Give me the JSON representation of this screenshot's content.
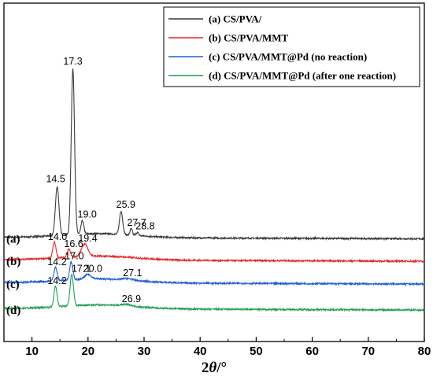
{
  "chart_data": {
    "type": "line",
    "title": "",
    "xlabel": "2θ/°",
    "xlabel_parts": [
      "2",
      "θ",
      "/°"
    ],
    "ylabel": "",
    "xlim": [
      5,
      80
    ],
    "xticks": [
      10,
      20,
      30,
      40,
      50,
      60,
      70,
      80
    ],
    "yticks_shown": false,
    "grid": false,
    "legend_position": "top-right",
    "series": [
      {
        "id": "a",
        "name": "(a) CS/PVA/",
        "label": "(a)",
        "color": "#3a3a3a",
        "baseline": 0.285,
        "peaks": [
          {
            "x": 14.5,
            "h": 0.62,
            "w": 0.45,
            "label": "14.5"
          },
          {
            "x": 17.3,
            "h": 2.1,
            "w": 0.42,
            "label": "17.3"
          },
          {
            "x": 19.0,
            "h": 0.17,
            "w": 0.35,
            "label": "19.0"
          },
          {
            "x": 25.9,
            "h": 0.3,
            "w": 0.4,
            "label": "25.9"
          },
          {
            "x": 27.7,
            "h": 0.08,
            "w": 0.3,
            "label": "27.7"
          },
          {
            "x": 28.8,
            "h": 0.04,
            "w": 0.3,
            "label": "28.8"
          }
        ]
      },
      {
        "id": "b",
        "name": "(b) CS/PVA/MMT",
        "label": "(b)",
        "color": "#e8282b",
        "baseline": 0.0,
        "peaks": [
          {
            "x": 14.0,
            "h": 0.2,
            "w": 0.4,
            "label": "14.0"
          },
          {
            "x": 16.6,
            "h": 0.1,
            "w": 0.4,
            "label": "16.6"
          },
          {
            "x": 19.4,
            "h": 0.16,
            "w": 0.8,
            "label": "19.4"
          }
        ]
      },
      {
        "id": "c",
        "name": "(c) CS/PVA/MMT@Pd (no reaction)",
        "label": "(c)",
        "color": "#1f5fd1",
        "baseline": -0.29,
        "peaks": [
          {
            "x": 14.2,
            "h": 0.17,
            "w": 0.4,
            "label": "14.2"
          },
          {
            "x": 17.0,
            "h": 0.23,
            "w": 0.4,
            "label": "17.0"
          },
          {
            "x": 20.0,
            "h": 0.06,
            "w": 0.8,
            "label": "20.0"
          },
          {
            "x": 27.1,
            "h": 0.02,
            "w": 1.2,
            "label": "27.1"
          }
        ]
      },
      {
        "id": "d",
        "name": "(d) CS/PVA/MMT@Pd (after one reaction)",
        "label": "(d)",
        "color": "#1f9e52",
        "baseline": -0.62,
        "peaks": [
          {
            "x": 14.2,
            "h": 0.26,
            "w": 0.4,
            "label": "14.2"
          },
          {
            "x": 17.1,
            "h": 0.4,
            "w": 0.42,
            "label": "17.1"
          },
          {
            "x": 26.9,
            "h": 0.02,
            "w": 1.2,
            "label": "26.9"
          }
        ]
      }
    ]
  }
}
